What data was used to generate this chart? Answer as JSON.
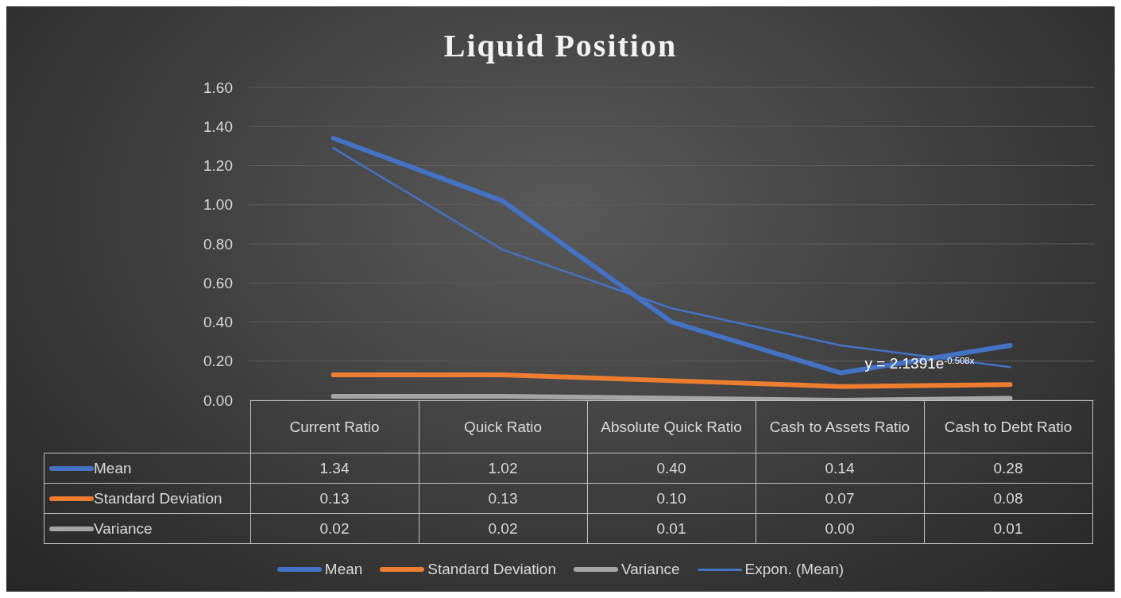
{
  "chart_data": {
    "type": "line",
    "title": "Liquid Position",
    "categories": [
      "Current Ratio",
      "Quick Ratio",
      "Absolute Quick Ratio",
      "Cash to Assets Ratio",
      "Cash to Debt Ratio"
    ],
    "series": [
      {
        "name": "Mean",
        "color": "#4472c4",
        "values": [
          1.34,
          1.02,
          0.4,
          0.14,
          0.28
        ],
        "value_labels": [
          "1.34",
          "1.02",
          "0.40",
          "0.14",
          "0.28"
        ]
      },
      {
        "name": "Standard Deviation",
        "color": "#ed7d31",
        "values": [
          0.13,
          0.13,
          0.1,
          0.07,
          0.08
        ],
        "value_labels": [
          "0.13",
          "0.13",
          "0.10",
          "0.07",
          "0.08"
        ]
      },
      {
        "name": "Variance",
        "color": "#a5a5a5",
        "values": [
          0.02,
          0.02,
          0.01,
          0.0,
          0.01
        ],
        "value_labels": [
          "0.02",
          "0.02",
          "0.01",
          "0.00",
          "0.01"
        ]
      },
      {
        "name": "Expon. (Mean)",
        "type": "line",
        "color": "#4472c4",
        "x": [
          "Current Ratio",
          "Quick Ratio",
          "Absolute Quick Ratio",
          "Cash to Assets Ratio",
          "Cash to Debt Ratio"
        ],
        "values": [
          1.29,
          0.77,
          0.47,
          0.28,
          0.17
        ]
      }
    ],
    "ylim": [
      0,
      1.6
    ],
    "yticks": [
      {
        "value": 0,
        "label": "0.00"
      },
      {
        "value": 0.2,
        "label": "0.20"
      },
      {
        "value": 0.4,
        "label": "0.40"
      },
      {
        "value": 0.6,
        "label": "0.60"
      },
      {
        "value": 0.8,
        "label": "0.80"
      },
      {
        "value": 1.0,
        "label": "1.00"
      },
      {
        "value": 1.2,
        "label": "1.20"
      },
      {
        "value": 1.4,
        "label": "1.40"
      },
      {
        "value": 1.6,
        "label": "1.60"
      }
    ],
    "annotations": [
      {
        "text": "y = 2.1391e$^{-0.508x}$",
        "x": "Cash to Assets Ratio",
        "y": 0.17
      }
    ],
    "grid": "y",
    "legend": "bottom",
    "marker": "none"
  }
}
